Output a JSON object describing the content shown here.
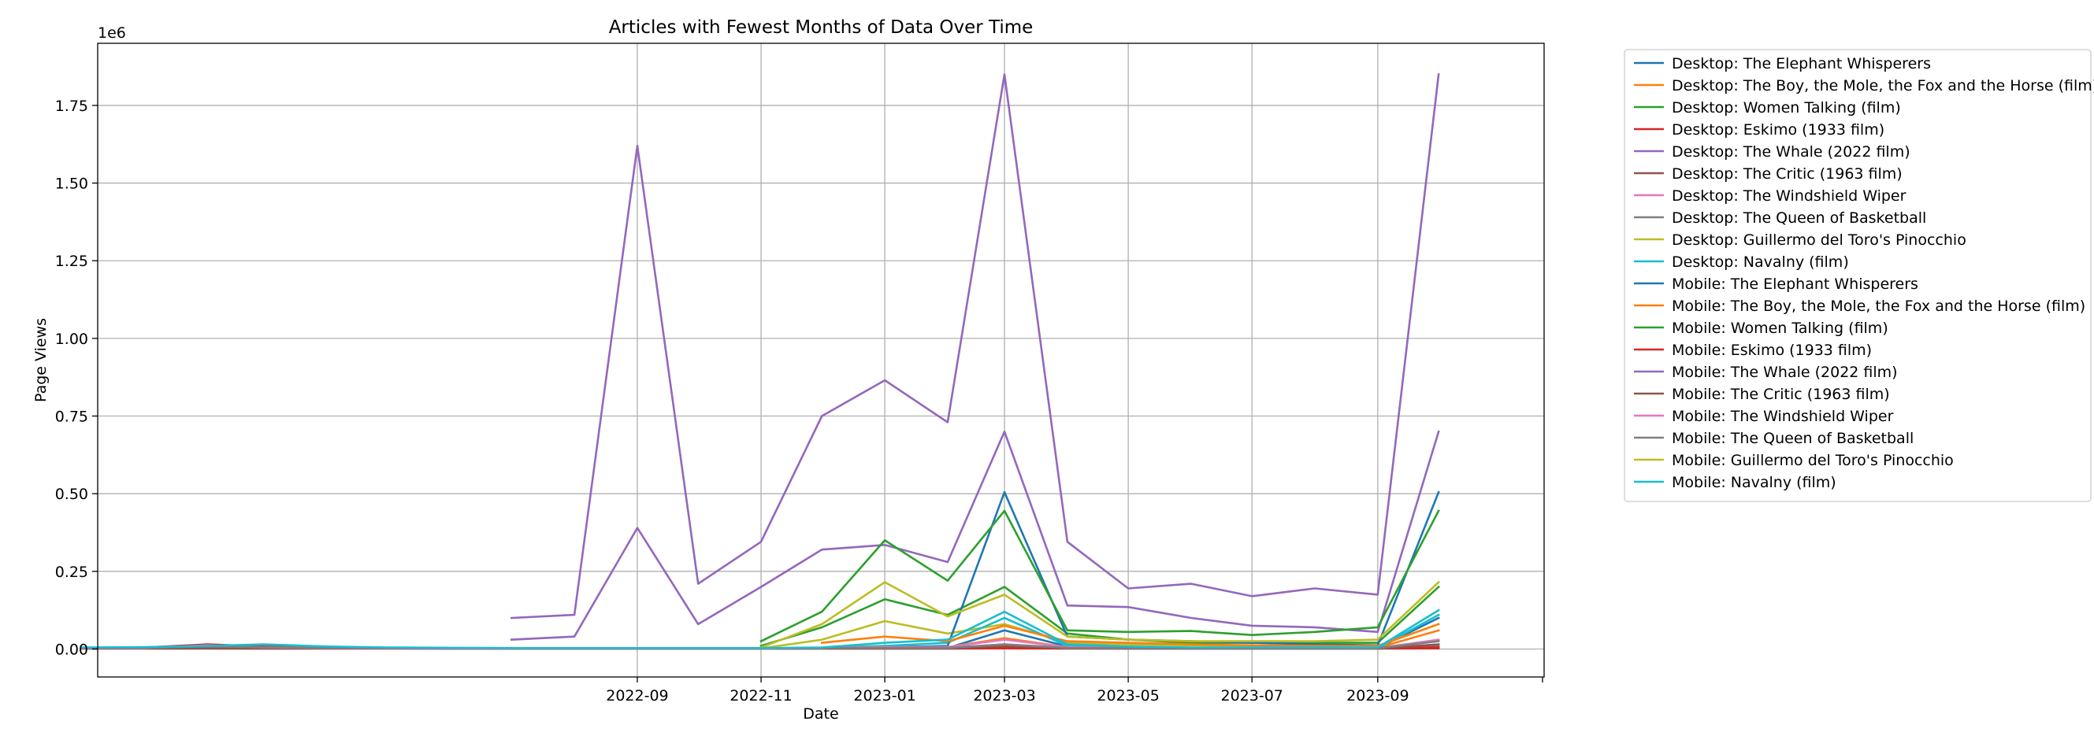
{
  "chart_data": {
    "type": "line",
    "title": "Articles with Fewest Months of Data Over Time",
    "xlabel": "Date",
    "ylabel": "Page Views",
    "y_offset_label": "1e6",
    "grid": true,
    "legend_position": "outside-right",
    "xlim": [
      "2021-12-09",
      "2023-11-22"
    ],
    "ylim": [
      -90000,
      1950000
    ],
    "x_ticks": [
      "2022-09-01",
      "2022-11-01",
      "2023-01-01",
      "2023-03-01",
      "2023-05-01",
      "2023-07-01",
      "2023-09-01"
    ],
    "x_tick_labels": [
      "2022-09",
      "2022-11",
      "2023-01",
      "2023-03",
      "2023-05",
      "2023-07",
      "2023-09"
    ],
    "y_ticks": [
      0,
      250000,
      500000,
      750000,
      1000000,
      1250000,
      1500000,
      1750000
    ],
    "y_tick_labels": [
      "0.00",
      "0.25",
      "0.50",
      "0.75",
      "1.00",
      "1.25",
      "1.50",
      "1.75"
    ],
    "series": [
      {
        "name": "Desktop: The Elephant Whisperers",
        "color": "#1f77b4",
        "x": [
          "2023-01-01",
          "2023-02-01",
          "2023-03-01",
          "2023-04-01",
          "2023-05-01",
          "2023-06-01",
          "2023-07-01",
          "2023-08-01",
          "2023-09-01",
          "2023-10-01"
        ],
        "y": [
          2000,
          3000,
          60000,
          8000,
          5000,
          4000,
          3000,
          3000,
          3000,
          100000
        ]
      },
      {
        "name": "Desktop: The Boy, the Mole, the Fox and the Horse (film)",
        "color": "#ff7f0e",
        "x": [
          "2022-12-01",
          "2023-01-01",
          "2023-02-01",
          "2023-03-01",
          "2023-04-01",
          "2023-05-01",
          "2023-06-01",
          "2023-07-01",
          "2023-08-01",
          "2023-09-01",
          "2023-10-01"
        ],
        "y": [
          5000,
          10000,
          6000,
          35000,
          6000,
          4000,
          3000,
          3000,
          3000,
          4000,
          60000
        ]
      },
      {
        "name": "Desktop: Women Talking (film)",
        "color": "#2ca02c",
        "x": [
          "2022-11-01",
          "2022-12-01",
          "2023-01-01",
          "2023-02-01",
          "2023-03-01",
          "2023-04-01",
          "2023-05-01",
          "2023-06-01",
          "2023-07-01",
          "2023-08-01",
          "2023-09-01",
          "2023-10-01"
        ],
        "y": [
          10000,
          70000,
          160000,
          110000,
          200000,
          50000,
          30000,
          20000,
          20000,
          20000,
          20000,
          200000
        ]
      },
      {
        "name": "Desktop: Eskimo (1933 film)",
        "color": "#d62728",
        "x": [
          "2021-12-01",
          "2022-01-01",
          "2022-02-01",
          "2022-03-01",
          "2022-04-01",
          "2022-05-01",
          "2022-06-01",
          "2022-07-01",
          "2022-08-01",
          "2022-09-01",
          "2022-10-01",
          "2022-11-01",
          "2022-12-01",
          "2023-01-01",
          "2023-02-01",
          "2023-03-01",
          "2023-04-01",
          "2023-05-01",
          "2023-06-01",
          "2023-07-01",
          "2023-08-01",
          "2023-09-01",
          "2023-10-01"
        ],
        "y": [
          2000,
          2000,
          3000,
          2000,
          2000,
          2000,
          1500,
          1500,
          1500,
          1500,
          1500,
          1500,
          1500,
          1500,
          1500,
          2000,
          1500,
          1500,
          1500,
          1500,
          1500,
          1500,
          2000
        ]
      },
      {
        "name": "Desktop: The Whale (2022 film)",
        "color": "#9467bd",
        "x": [
          "2022-07-01",
          "2022-08-01",
          "2022-09-01",
          "2022-10-01",
          "2022-11-01",
          "2022-12-01",
          "2023-01-01",
          "2023-02-01",
          "2023-03-01",
          "2023-04-01",
          "2023-05-01",
          "2023-06-01",
          "2023-07-01",
          "2023-08-01",
          "2023-09-01",
          "2023-10-01"
        ],
        "y": [
          30000,
          40000,
          390000,
          80000,
          200000,
          320000,
          335000,
          280000,
          700000,
          140000,
          135000,
          100000,
          75000,
          70000,
          55000,
          700000
        ]
      },
      {
        "name": "Desktop: The Critic (1963 film)",
        "color": "#8c564b",
        "x": [
          "2021-12-01",
          "2022-01-01",
          "2022-02-01",
          "2022-03-01",
          "2022-04-01",
          "2022-05-01",
          "2022-06-01",
          "2022-07-01",
          "2022-08-01",
          "2022-09-01",
          "2022-10-01",
          "2022-11-01",
          "2022-12-01",
          "2023-01-01",
          "2023-02-01",
          "2023-03-01",
          "2023-04-01",
          "2023-05-01",
          "2023-06-01",
          "2023-07-01",
          "2023-08-01",
          "2023-09-01",
          "2023-10-01"
        ],
        "y": [
          1000,
          1000,
          1500,
          1000,
          1000,
          1000,
          1000,
          1000,
          1000,
          1000,
          1000,
          1000,
          1000,
          1500,
          1500,
          5000,
          2000,
          1500,
          1000,
          1000,
          1000,
          1000,
          8000
        ]
      },
      {
        "name": "Desktop: The Windshield Wiper",
        "color": "#e377c2",
        "x": [
          "2021-12-01",
          "2022-01-01",
          "2022-02-01",
          "2022-03-01",
          "2022-04-01",
          "2022-05-01",
          "2022-06-01",
          "2022-07-01",
          "2022-08-01",
          "2022-09-01",
          "2022-10-01",
          "2022-11-01",
          "2022-12-01",
          "2023-01-01",
          "2023-02-01",
          "2023-03-01",
          "2023-04-01",
          "2023-05-01",
          "2023-06-01",
          "2023-07-01",
          "2023-08-01",
          "2023-09-01",
          "2023-10-01"
        ],
        "y": [
          1500,
          1500,
          6000,
          2000,
          1500,
          1000,
          1000,
          1000,
          1000,
          1000,
          1000,
          1000,
          1500,
          3000,
          3000,
          15000,
          3000,
          2000,
          1500,
          1500,
          1500,
          1500,
          15000
        ]
      },
      {
        "name": "Desktop: The Queen of Basketball",
        "color": "#7f7f7f",
        "x": [
          "2021-12-01",
          "2022-01-01",
          "2022-02-01",
          "2022-03-01",
          "2022-04-01",
          "2022-05-01",
          "2022-06-01",
          "2022-07-01",
          "2022-08-01",
          "2022-09-01",
          "2022-10-01",
          "2022-11-01",
          "2022-12-01",
          "2023-01-01",
          "2023-02-01",
          "2023-03-01",
          "2023-04-01",
          "2023-05-01",
          "2023-06-01",
          "2023-07-01",
          "2023-08-01",
          "2023-09-01",
          "2023-10-01"
        ],
        "y": [
          2000,
          2000,
          4000,
          3000,
          2000,
          2000,
          1500,
          1500,
          1500,
          1500,
          1500,
          1500,
          1500,
          2000,
          2000,
          8000,
          2000,
          1500,
          1500,
          1500,
          1500,
          1500,
          12000
        ]
      },
      {
        "name": "Desktop: Guillermo del Toro's Pinocchio",
        "color": "#bcbd22",
        "x": [
          "2022-11-01",
          "2022-12-01",
          "2023-01-01",
          "2023-02-01",
          "2023-03-01",
          "2023-04-01",
          "2023-05-01",
          "2023-06-01",
          "2023-07-01",
          "2023-08-01",
          "2023-09-01",
          "2023-10-01"
        ],
        "y": [
          2000,
          30000,
          90000,
          50000,
          80000,
          20000,
          15000,
          12000,
          10000,
          10000,
          10000,
          80000
        ]
      },
      {
        "name": "Desktop: Navalny (film)",
        "color": "#17becf",
        "x": [
          "2021-12-01",
          "2022-01-01",
          "2022-02-01",
          "2022-03-01",
          "2022-04-01",
          "2022-05-01",
          "2022-06-01",
          "2022-07-01",
          "2022-08-01",
          "2022-09-01",
          "2022-10-01",
          "2022-11-01",
          "2022-12-01",
          "2023-01-01",
          "2023-02-01",
          "2023-03-01",
          "2023-04-01",
          "2023-05-01",
          "2023-06-01",
          "2023-07-01",
          "2023-08-01",
          "2023-09-01",
          "2023-10-01"
        ],
        "y": [
          3000,
          4000,
          8000,
          12000,
          5000,
          3000,
          2500,
          2000,
          2000,
          2000,
          2000,
          2000,
          3000,
          10000,
          20000,
          100000,
          10000,
          5000,
          3000,
          3000,
          3000,
          3000,
          110000
        ]
      },
      {
        "name": "Mobile: The Elephant Whisperers",
        "color": "#1f77b4",
        "x": [
          "2023-01-01",
          "2023-02-01",
          "2023-03-01",
          "2023-04-01",
          "2023-05-01",
          "2023-06-01",
          "2023-07-01",
          "2023-08-01",
          "2023-09-01",
          "2023-10-01"
        ],
        "y": [
          5000,
          10000,
          505000,
          40000,
          30000,
          25000,
          20000,
          15000,
          12000,
          505000
        ]
      },
      {
        "name": "Mobile: The Boy, the Mole, the Fox and the Horse (film)",
        "color": "#ff7f0e",
        "x": [
          "2022-12-01",
          "2023-01-01",
          "2023-02-01",
          "2023-03-01",
          "2023-04-01",
          "2023-05-01",
          "2023-06-01",
          "2023-07-01",
          "2023-08-01",
          "2023-09-01",
          "2023-10-01"
        ],
        "y": [
          20000,
          40000,
          25000,
          75000,
          25000,
          20000,
          15000,
          12000,
          10000,
          10000,
          80000
        ]
      },
      {
        "name": "Mobile: Women Talking (film)",
        "color": "#2ca02c",
        "x": [
          "2022-11-01",
          "2022-12-01",
          "2023-01-01",
          "2023-02-01",
          "2023-03-01",
          "2023-04-01",
          "2023-05-01",
          "2023-06-01",
          "2023-07-01",
          "2023-08-01",
          "2023-09-01",
          "2023-10-01"
        ],
        "y": [
          25000,
          120000,
          350000,
          220000,
          445000,
          60000,
          55000,
          58000,
          45000,
          55000,
          70000,
          445000
        ]
      },
      {
        "name": "Mobile: Eskimo (1933 film)",
        "color": "#d62728",
        "x": [
          "2021-12-01",
          "2022-01-01",
          "2022-02-01",
          "2022-03-01",
          "2022-04-01",
          "2022-05-01",
          "2022-06-01",
          "2022-07-01",
          "2022-08-01",
          "2022-09-01",
          "2022-10-01",
          "2022-11-01",
          "2022-12-01",
          "2023-01-01",
          "2023-02-01",
          "2023-03-01",
          "2023-04-01",
          "2023-05-01",
          "2023-06-01",
          "2023-07-01",
          "2023-08-01",
          "2023-09-01",
          "2023-10-01"
        ],
        "y": [
          4000,
          5000,
          15000,
          8000,
          5000,
          4000,
          3000,
          3000,
          3000,
          3000,
          3000,
          3000,
          3000,
          3000,
          3000,
          5000,
          3000,
          3000,
          3000,
          3000,
          3000,
          3000,
          5000
        ]
      },
      {
        "name": "Mobile: The Whale (2022 film)",
        "color": "#9467bd",
        "x": [
          "2022-07-01",
          "2022-08-01",
          "2022-09-01",
          "2022-10-01",
          "2022-11-01",
          "2022-12-01",
          "2023-01-01",
          "2023-02-01",
          "2023-03-01",
          "2023-04-01",
          "2023-05-01",
          "2023-06-01",
          "2023-07-01",
          "2023-08-01",
          "2023-09-01",
          "2023-10-01"
        ],
        "y": [
          100000,
          110000,
          1620000,
          210000,
          345000,
          750000,
          865000,
          730000,
          1850000,
          345000,
          195000,
          210000,
          170000,
          195000,
          175000,
          1850000
        ]
      },
      {
        "name": "Mobile: The Critic (1963 film)",
        "color": "#8c564b",
        "x": [
          "2021-12-01",
          "2022-01-01",
          "2022-02-01",
          "2022-03-01",
          "2022-04-01",
          "2022-05-01",
          "2022-06-01",
          "2022-07-01",
          "2022-08-01",
          "2022-09-01",
          "2022-10-01",
          "2022-11-01",
          "2022-12-01",
          "2023-01-01",
          "2023-02-01",
          "2023-03-01",
          "2023-04-01",
          "2023-05-01",
          "2023-06-01",
          "2023-07-01",
          "2023-08-01",
          "2023-09-01",
          "2023-10-01"
        ],
        "y": [
          2000,
          2000,
          3000,
          2000,
          2000,
          2000,
          1500,
          1500,
          1500,
          1500,
          1500,
          1500,
          2000,
          3000,
          3000,
          10000,
          4000,
          3000,
          2000,
          2000,
          2000,
          2000,
          15000
        ]
      },
      {
        "name": "Mobile: The Windshield Wiper",
        "color": "#e377c2",
        "x": [
          "2021-12-01",
          "2022-01-01",
          "2022-02-01",
          "2022-03-01",
          "2022-04-01",
          "2022-05-01",
          "2022-06-01",
          "2022-07-01",
          "2022-08-01",
          "2022-09-01",
          "2022-10-01",
          "2022-11-01",
          "2022-12-01",
          "2023-01-01",
          "2023-02-01",
          "2023-03-01",
          "2023-04-01",
          "2023-05-01",
          "2023-06-01",
          "2023-07-01",
          "2023-08-01",
          "2023-09-01",
          "2023-10-01"
        ],
        "y": [
          3000,
          3000,
          12000,
          5000,
          3000,
          2500,
          2000,
          2000,
          2000,
          2000,
          2000,
          2000,
          3000,
          6000,
          6000,
          30000,
          6000,
          4000,
          3000,
          3000,
          3000,
          3000,
          30000
        ]
      },
      {
        "name": "Mobile: The Queen of Basketball",
        "color": "#7f7f7f",
        "x": [
          "2021-12-01",
          "2022-01-01",
          "2022-02-01",
          "2022-03-01",
          "2022-04-01",
          "2022-05-01",
          "2022-06-01",
          "2022-07-01",
          "2022-08-01",
          "2022-09-01",
          "2022-10-01",
          "2022-11-01",
          "2022-12-01",
          "2023-01-01",
          "2023-02-01",
          "2023-03-01",
          "2023-04-01",
          "2023-05-01",
          "2023-06-01",
          "2023-07-01",
          "2023-08-01",
          "2023-09-01",
          "2023-10-01"
        ],
        "y": [
          4000,
          4000,
          8000,
          6000,
          4000,
          3000,
          3000,
          3000,
          3000,
          3000,
          3000,
          3000,
          3000,
          4000,
          4000,
          15000,
          4000,
          3000,
          3000,
          3000,
          3000,
          3000,
          25000
        ]
      },
      {
        "name": "Mobile: Guillermo del Toro's Pinocchio",
        "color": "#bcbd22",
        "x": [
          "2022-11-01",
          "2022-12-01",
          "2023-01-01",
          "2023-02-01",
          "2023-03-01",
          "2023-04-01",
          "2023-05-01",
          "2023-06-01",
          "2023-07-01",
          "2023-08-01",
          "2023-09-01",
          "2023-10-01"
        ],
        "y": [
          5000,
          80000,
          215000,
          105000,
          175000,
          40000,
          30000,
          25000,
          25000,
          25000,
          30000,
          215000
        ]
      },
      {
        "name": "Mobile: Navalny (film)",
        "color": "#17becf",
        "x": [
          "2021-12-01",
          "2022-01-01",
          "2022-02-01",
          "2022-03-01",
          "2022-04-01",
          "2022-05-01",
          "2022-06-01",
          "2022-07-01",
          "2022-08-01",
          "2022-09-01",
          "2022-10-01",
          "2022-11-01",
          "2022-12-01",
          "2023-01-01",
          "2023-02-01",
          "2023-03-01",
          "2023-04-01",
          "2023-05-01",
          "2023-06-01",
          "2023-07-01",
          "2023-08-01",
          "2023-09-01",
          "2023-10-01"
        ],
        "y": [
          5000,
          6000,
          10000,
          15000,
          8000,
          5000,
          4000,
          3000,
          3000,
          3000,
          3000,
          3000,
          5000,
          20000,
          30000,
          120000,
          15000,
          8000,
          5000,
          5000,
          5000,
          5000,
          125000
        ]
      }
    ]
  }
}
